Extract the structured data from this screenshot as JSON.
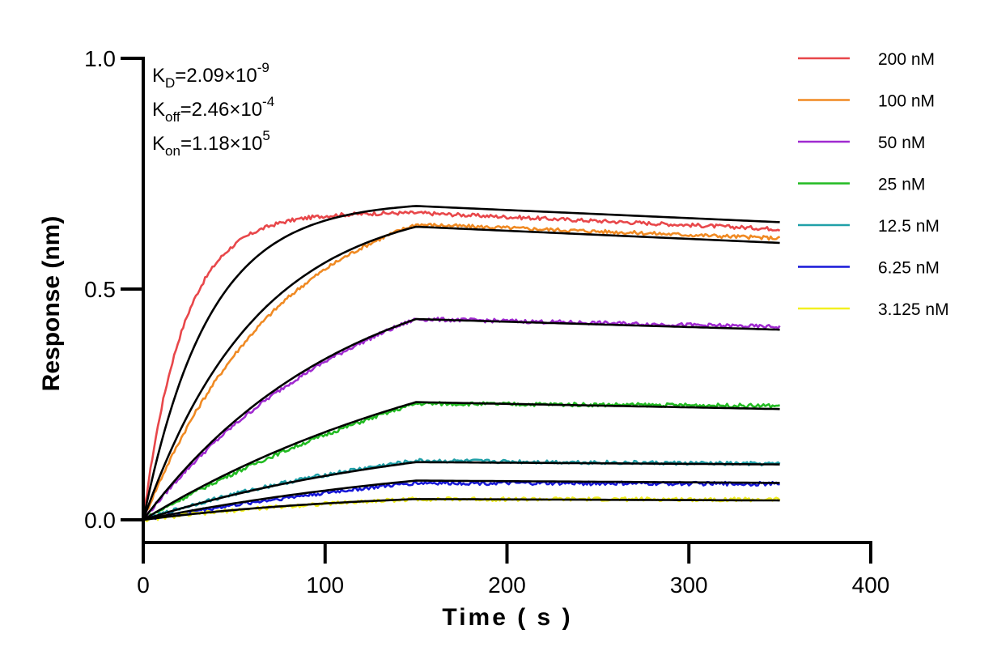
{
  "chart_data": {
    "type": "line",
    "xlabel": "Time ( s )",
    "ylabel": "Response (nm)",
    "xlim": [
      0,
      400
    ],
    "ylim": [
      -0.05,
      1.0
    ],
    "x_ticks": [
      0,
      100,
      200,
      300,
      400
    ],
    "x_tick_labels": [
      "0",
      "100",
      "200",
      "300",
      "400"
    ],
    "y_ticks": [
      0.0,
      0.5,
      1.0
    ],
    "y_tick_labels": [
      "0.0",
      "0.5",
      "1.0"
    ],
    "grid": false,
    "legend_position": "top-right",
    "annotations": [
      {
        "base": "K",
        "sub": "D",
        "eq": "=2.09×10",
        "sup": "-9"
      },
      {
        "base": "K",
        "sub": "off",
        "eq": "=2.46×10",
        "sup": "-4"
      },
      {
        "base": "K",
        "sub": "on",
        "eq": "=1.18×10",
        "sup": "5"
      }
    ],
    "association_end": 150,
    "x_end": 350,
    "fit_color": "#000000",
    "series": [
      {
        "name": "200 nM",
        "color": "#e8474a",
        "fit_plateau": 0.68,
        "fit_end": 0.645,
        "data_plateau": 0.665,
        "data_end": 0.63
      },
      {
        "name": "100 nM",
        "color": "#f08a23",
        "fit_plateau": 0.635,
        "fit_end": 0.6,
        "data_plateau": 0.64,
        "data_end": 0.61
      },
      {
        "name": "50 nM",
        "color": "#a02ad0",
        "fit_plateau": 0.435,
        "fit_end": 0.412,
        "data_plateau": 0.435,
        "data_end": 0.418
      },
      {
        "name": "25 nM",
        "color": "#22bb22",
        "fit_plateau": 0.255,
        "fit_end": 0.24,
        "data_plateau": 0.252,
        "data_end": 0.247
      },
      {
        "name": "12.5 nM",
        "color": "#20a0a8",
        "fit_plateau": 0.125,
        "fit_end": 0.12,
        "data_plateau": 0.128,
        "data_end": 0.121
      },
      {
        "name": "6.25 nM",
        "color": "#1818d8",
        "fit_plateau": 0.085,
        "fit_end": 0.08,
        "data_plateau": 0.08,
        "data_end": 0.078
      },
      {
        "name": "3.125 nM",
        "color": "#f2f020",
        "fit_plateau": 0.045,
        "fit_end": 0.042,
        "data_plateau": 0.045,
        "data_end": 0.044
      }
    ]
  }
}
